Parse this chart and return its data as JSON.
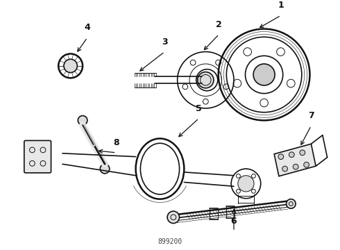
{
  "background_color": "#ffffff",
  "fig_width": 4.9,
  "fig_height": 3.6,
  "dpi": 100,
  "part_number": "899200",
  "arrow_color": "#111111",
  "line_color": "#111111",
  "text_color": "#111111",
  "part_num_color": "#444444",
  "lw_thick": 1.8,
  "lw_med": 1.2,
  "lw_thin": 0.7,
  "lw_hair": 0.4
}
